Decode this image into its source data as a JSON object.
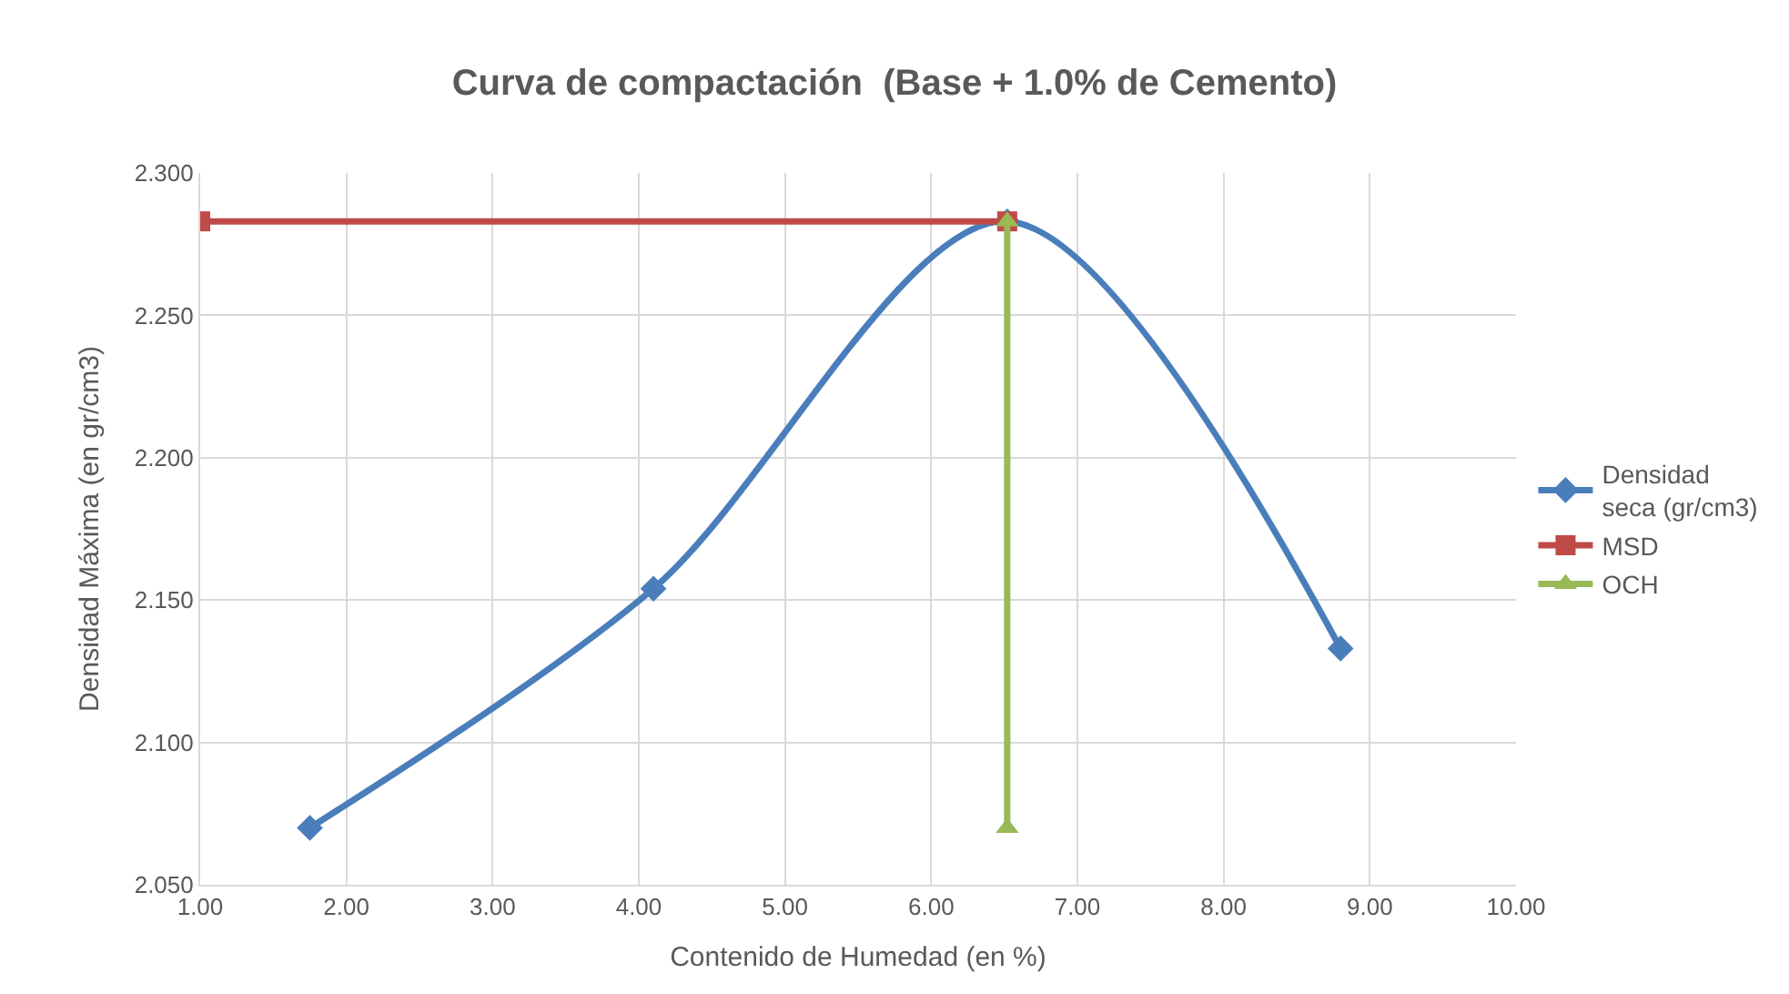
{
  "chart_data": {
    "type": "line",
    "title": "Curva de compactación  (Base + 1.0% de Cemento)",
    "xlabel": "Contenido de Humedad (en %)",
    "ylabel": "Densidad Máxima (en gr/cm3)",
    "xlim": [
      1.0,
      10.0
    ],
    "xticks": [
      {
        "value": 1,
        "label": "1.00"
      },
      {
        "value": 2,
        "label": "2.00"
      },
      {
        "value": 3,
        "label": "3.00"
      },
      {
        "value": 4,
        "label": "4.00"
      },
      {
        "value": 5,
        "label": "5.00"
      },
      {
        "value": 6,
        "label": "6.00"
      },
      {
        "value": 7,
        "label": "7.00"
      },
      {
        "value": 8,
        "label": "8.00"
      },
      {
        "value": 9,
        "label": "9.00"
      },
      {
        "value": 10,
        "label": "10.00"
      }
    ],
    "ylim": [
      2.05,
      2.3
    ],
    "yticks": [
      {
        "value": 2.05,
        "label": "2.050"
      },
      {
        "value": 2.1,
        "label": "2.100"
      },
      {
        "value": 2.15,
        "label": "2.150"
      },
      {
        "value": 2.2,
        "label": "2.200"
      },
      {
        "value": 2.25,
        "label": "2.250"
      },
      {
        "value": 2.3,
        "label": "2.300"
      }
    ],
    "grid": true,
    "legend": "right",
    "series": [
      {
        "name": "Densidad seca (gr/cm3)",
        "color": "#4a7ebb",
        "marker": "diamond",
        "x": [
          1.75,
          4.1,
          6.52,
          8.8
        ],
        "values": [
          2.07,
          2.154,
          2.283,
          2.133
        ]
      },
      {
        "name": "MSD",
        "color": "#be4b48",
        "marker": "square",
        "x": [
          1.0,
          6.52
        ],
        "values": [
          2.283,
          2.283
        ]
      },
      {
        "name": "OCH",
        "color": "#98b954",
        "marker": "triangle",
        "x": [
          6.52,
          6.52
        ],
        "values": [
          2.283,
          2.07
        ]
      }
    ]
  }
}
